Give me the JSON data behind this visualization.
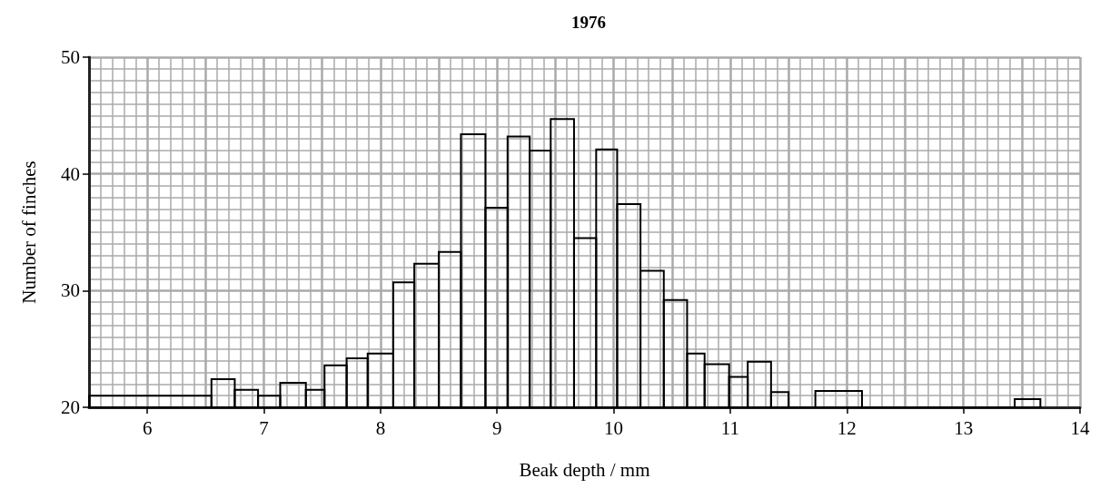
{
  "chart_data": {
    "type": "histogram",
    "title": "1976",
    "xlabel": "Beak depth / mm",
    "ylabel": "Number of finches",
    "bins": [
      5.5,
      6.55,
      6.75,
      6.95,
      7.14,
      7.36,
      7.52,
      7.71,
      7.89,
      8.11,
      8.29,
      8.5,
      8.69,
      8.9,
      9.09,
      9.28,
      9.46,
      9.66,
      9.85,
      10.03,
      10.23,
      10.43,
      10.63,
      10.78,
      10.99,
      11.15,
      11.35,
      11.5,
      11.73,
      12.13,
      13.44,
      13.66
    ],
    "values": [
      21.0,
      22.4,
      21.5,
      21.0,
      22.1,
      21.5,
      23.6,
      24.2,
      24.6,
      30.7,
      32.3,
      33.3,
      43.4,
      37.1,
      43.2,
      42.0,
      44.7,
      34.5,
      42.1,
      37.4,
      31.7,
      29.2,
      24.6,
      23.7,
      22.6,
      23.9,
      21.3,
      20,
      21.4,
      20,
      20.7
    ],
    "color": "#000000",
    "xlim": [
      5.5,
      14
    ],
    "xticks": [
      6,
      7,
      8,
      9,
      10,
      11,
      12,
      13,
      14
    ],
    "ylim": [
      20,
      50
    ],
    "yticks": [
      20,
      30,
      40,
      50
    ],
    "grid": true
  }
}
